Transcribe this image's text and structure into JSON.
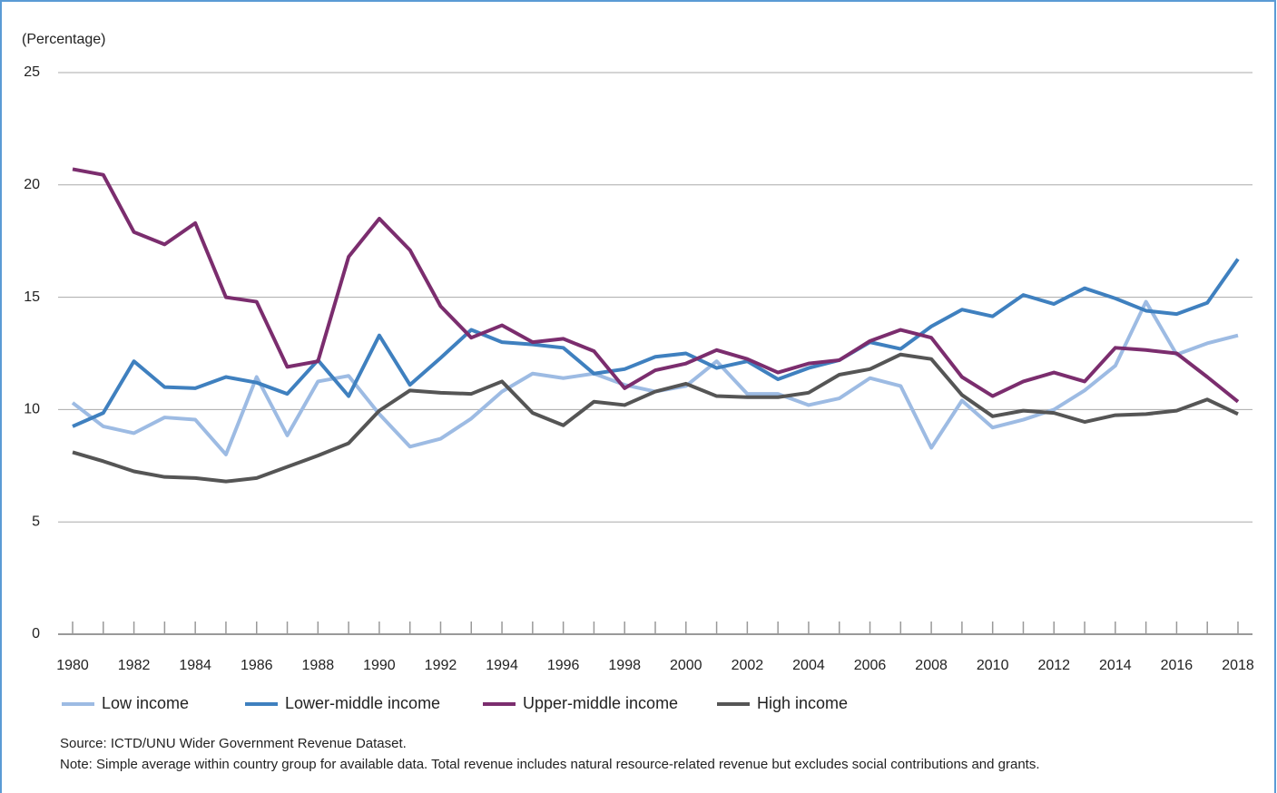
{
  "chart_data": {
    "type": "line",
    "y_label": "(Percentage)",
    "x": [
      1980,
      1981,
      1982,
      1983,
      1984,
      1985,
      1986,
      1987,
      1988,
      1989,
      1990,
      1991,
      1992,
      1993,
      1994,
      1995,
      1996,
      1997,
      1998,
      1999,
      2000,
      2001,
      2002,
      2003,
      2004,
      2005,
      2006,
      2007,
      2008,
      2009,
      2010,
      2011,
      2012,
      2013,
      2014,
      2015,
      2016,
      2017,
      2018
    ],
    "xlim": [
      1980,
      2018
    ],
    "xticks": [
      1980,
      1982,
      1984,
      1986,
      1988,
      1990,
      1992,
      1994,
      1996,
      1998,
      2000,
      2002,
      2004,
      2006,
      2008,
      2010,
      2012,
      2014,
      2016,
      2018
    ],
    "ylim": [
      0,
      25
    ],
    "yticks": [
      0,
      5,
      10,
      15,
      20,
      25
    ],
    "grid": true,
    "legend": "bottom",
    "series": [
      {
        "name": "Low income",
        "color": "#9dbbe3",
        "values": [
          10.3,
          9.25,
          8.95,
          9.65,
          9.55,
          8.0,
          11.45,
          8.85,
          11.25,
          11.5,
          9.8,
          8.35,
          8.7,
          9.6,
          10.8,
          11.6,
          11.4,
          11.6,
          11.1,
          10.8,
          11.05,
          12.15,
          10.7,
          10.7,
          10.2,
          10.5,
          11.4,
          11.05,
          8.3,
          10.4,
          9.2,
          9.55,
          10.0,
          10.85,
          11.95,
          14.8,
          12.45,
          12.95,
          13.3
        ]
      },
      {
        "name": "Lower-middle income",
        "color": "#3f80bf",
        "values": [
          9.25,
          9.85,
          12.15,
          11.0,
          10.95,
          11.45,
          11.2,
          10.7,
          12.2,
          10.6,
          13.3,
          11.1,
          12.3,
          13.55,
          13.0,
          12.9,
          12.75,
          11.6,
          11.8,
          12.35,
          12.5,
          11.85,
          12.15,
          11.35,
          11.85,
          12.2,
          13.0,
          12.7,
          13.7,
          14.45,
          14.15,
          15.1,
          14.7,
          15.4,
          14.95,
          14.4,
          14.25,
          14.75,
          16.7
        ]
      },
      {
        "name": "Upper-middle income",
        "color": "#7b2d6e",
        "values": [
          20.7,
          20.45,
          17.9,
          17.35,
          18.3,
          15.0,
          14.8,
          11.9,
          12.15,
          16.8,
          18.5,
          17.1,
          14.6,
          13.2,
          13.75,
          13.0,
          13.15,
          12.6,
          10.95,
          11.75,
          12.05,
          12.65,
          12.25,
          11.65,
          12.05,
          12.2,
          13.05,
          13.55,
          13.2,
          11.45,
          10.6,
          11.25,
          11.65,
          11.25,
          12.75,
          12.65,
          12.5,
          11.45,
          10.35
        ]
      },
      {
        "name": "High income",
        "color": "#555555",
        "values": [
          8.1,
          7.7,
          7.25,
          7.0,
          6.95,
          6.8,
          6.95,
          7.45,
          7.95,
          8.5,
          9.95,
          10.85,
          10.75,
          10.7,
          11.25,
          9.85,
          9.3,
          10.35,
          10.2,
          10.8,
          11.15,
          10.6,
          10.55,
          10.55,
          10.75,
          11.55,
          11.8,
          12.45,
          12.25,
          10.65,
          9.7,
          9.95,
          9.85,
          9.45,
          9.75,
          9.8,
          9.95,
          10.45,
          9.8
        ]
      }
    ],
    "source": "Source: ICTD/UNU Wider Government Revenue Dataset.",
    "note": "Note: Simple average within country group for available data. Total revenue includes natural resource-related revenue but excludes social contributions and grants."
  }
}
